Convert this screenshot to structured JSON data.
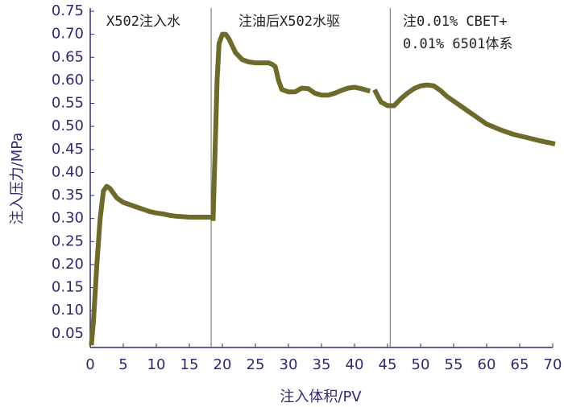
{
  "chart_data": {
    "type": "line",
    "x_label": "注入体积/PV",
    "y_label": "注入压力/MPa",
    "annotations": [
      "X502注入水",
      "注油后X502水驱",
      "注0.01% CBET+",
      "0.01% 6501体系"
    ],
    "dividers": [
      18.3,
      45.4
    ],
    "xlim": [
      0,
      70
    ],
    "xticks": [
      0,
      5,
      10,
      15,
      20,
      25,
      30,
      35,
      40,
      45,
      50,
      55,
      60,
      65,
      70
    ],
    "ylim": [
      0.02,
      0.75
    ],
    "yticks": [
      0.05,
      {
        "value": 0.1,
        "label": "0.10"
      },
      0.15,
      {
        "value": 0.2,
        "label": "0.20"
      },
      0.25,
      {
        "value": 0.3,
        "label": "0.30"
      },
      0.35,
      {
        "value": 0.4,
        "label": "0.40"
      },
      0.45,
      {
        "value": 0.5,
        "label": "0.50"
      },
      0.55,
      {
        "value": 0.6,
        "label": "0.60"
      },
      0.65,
      {
        "value": 0.7,
        "label": "0.70"
      },
      0.75
    ],
    "series": [
      {
        "color": "#6e6a2b",
        "x": [
          0.2,
          0.5,
          1,
          1.5,
          2,
          2.5,
          3,
          3.5,
          4,
          5,
          6,
          7,
          8,
          9,
          10,
          11,
          12,
          13,
          14,
          15,
          16,
          17,
          18.2,
          null,
          18.6,
          18.8,
          19,
          19.2,
          19.5,
          20,
          20.5,
          21,
          22,
          23,
          24,
          25,
          26,
          27,
          27.5,
          28,
          28.5,
          29,
          30,
          31,
          32,
          33,
          34,
          35,
          36,
          37,
          38,
          39,
          40,
          41,
          42,
          null,
          43.2,
          44,
          45,
          46,
          47,
          48,
          49,
          50,
          51,
          52,
          53,
          54,
          55,
          56,
          57,
          58,
          59,
          60,
          62,
          64,
          66,
          68,
          70
        ],
        "values": [
          0.03,
          0.08,
          0.2,
          0.3,
          0.36,
          0.37,
          0.365,
          0.355,
          0.345,
          0.335,
          0.33,
          0.325,
          0.32,
          0.315,
          0.312,
          0.31,
          0.307,
          0.305,
          0.304,
          0.303,
          0.303,
          0.303,
          0.303,
          null,
          0.3,
          0.4,
          0.5,
          0.6,
          0.68,
          0.7,
          0.7,
          0.69,
          0.66,
          0.645,
          0.64,
          0.638,
          0.638,
          0.638,
          0.635,
          0.63,
          0.6,
          0.58,
          0.575,
          0.575,
          0.583,
          0.582,
          0.572,
          0.568,
          0.568,
          0.572,
          0.578,
          0.583,
          0.585,
          0.582,
          0.578,
          null,
          0.575,
          0.553,
          0.545,
          0.545,
          0.56,
          0.572,
          0.582,
          0.588,
          0.59,
          0.588,
          0.578,
          0.565,
          0.555,
          0.545,
          0.535,
          0.525,
          0.515,
          0.505,
          0.493,
          0.483,
          0.476,
          0.469,
          0.463
        ]
      }
    ]
  }
}
